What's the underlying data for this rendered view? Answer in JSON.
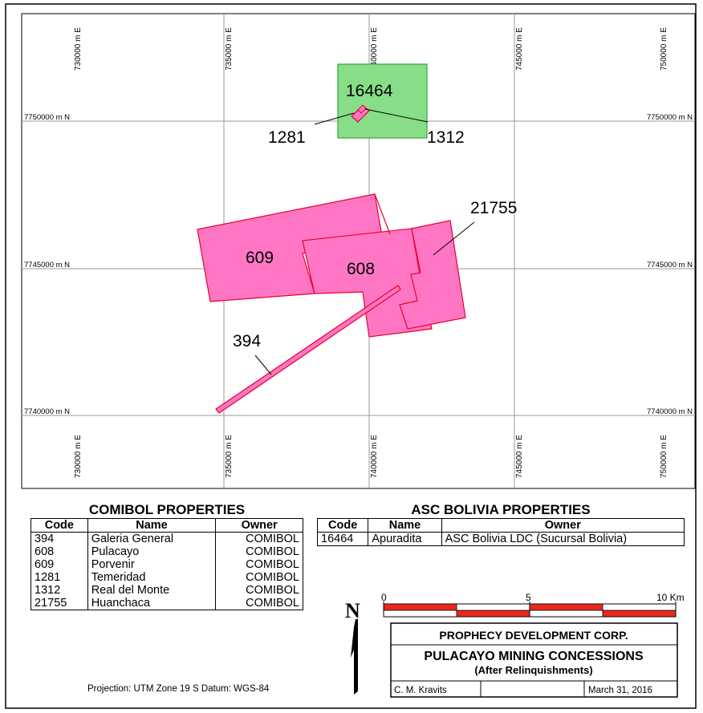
{
  "grid": {
    "easting_labels": [
      "730000 m E",
      "735000 m E",
      "740000 m E",
      "745000 m E",
      "750000 m E"
    ],
    "northing_labels": [
      "7750000 m N",
      "7745000 m N",
      "7740000 m N"
    ]
  },
  "concessions": [
    {
      "code": "16464",
      "color": "#88dd88"
    },
    {
      "code": "1281",
      "color": "#ff77c4"
    },
    {
      "code": "1312",
      "color": "#ff77c4"
    },
    {
      "code": "609",
      "color": "#ff77c4"
    },
    {
      "code": "608",
      "color": "#ff77c4"
    },
    {
      "code": "21755",
      "color": "#ff77c4"
    },
    {
      "code": "394",
      "color": "#ff77c4"
    }
  ],
  "comibol": {
    "title": "COMIBOL PROPERTIES",
    "headers": [
      "Code",
      "Name",
      "Owner"
    ],
    "rows": [
      [
        "394",
        "Galeria General",
        "COMIBOL"
      ],
      [
        "608",
        "Pulacayo",
        "COMIBOL"
      ],
      [
        "609",
        "Porvenir",
        "COMIBOL"
      ],
      [
        "1281",
        "Temeridad",
        "COMIBOL"
      ],
      [
        "1312",
        "Real del Monte",
        "COMIBOL"
      ],
      [
        "21755",
        "Huanchaca",
        "COMIBOL"
      ]
    ]
  },
  "asc": {
    "title": "ASC BOLIVIA PROPERTIES",
    "headers": [
      "Code",
      "Name",
      "Owner"
    ],
    "rows": [
      [
        "16464",
        "Apuradita",
        "ASC Bolivia LDC (Sucursal Bolivia)"
      ]
    ]
  },
  "north_arrow": {
    "label": "N"
  },
  "scale_bar": {
    "labels": [
      "0",
      "5",
      "10 Km"
    ],
    "color": "#e8281e"
  },
  "title_block": {
    "company": "PROPHECY DEVELOPMENT CORP.",
    "title": "PULACAYO MINING CONCESSIONS",
    "subtitle": "(After Relinquishments)",
    "author": "C. M. Kravits",
    "date": "March 31, 2016"
  },
  "projection_note": "Projection: UTM Zone 19 S   Datum: WGS-84"
}
